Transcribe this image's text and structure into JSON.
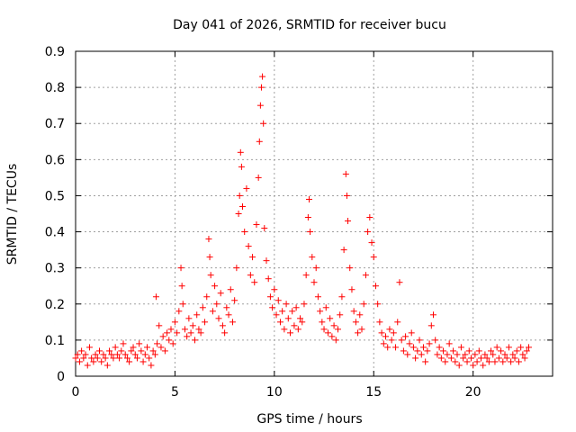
{
  "chart_data": {
    "type": "scatter",
    "title": "Day 041 of 2026, SRMTID for receiver bucu",
    "xlabel": "GPS time / hours",
    "ylabel": "SRMTID / TECUs",
    "xlim": [
      0,
      24
    ],
    "ylim": [
      0,
      0.9
    ],
    "xticks": [
      0,
      5,
      10,
      15,
      20
    ],
    "xtick_labels": [
      "0",
      "5",
      "10",
      "15",
      "20"
    ],
    "yticks": [
      0,
      0.1,
      0.2,
      0.3,
      0.4,
      0.5,
      0.6,
      0.7,
      0.8,
      0.9
    ],
    "ytick_labels": [
      "0",
      "0.1",
      "0.2",
      "0.3",
      "0.4",
      "0.5",
      "0.6",
      "0.7",
      "0.8",
      "0.9"
    ],
    "grid": true,
    "marker": "+",
    "color": "#ff0000",
    "series": [
      {
        "name": "SRMTID",
        "points": [
          [
            0.0,
            0.05
          ],
          [
            0.1,
            0.06
          ],
          [
            0.2,
            0.04
          ],
          [
            0.3,
            0.07
          ],
          [
            0.4,
            0.05
          ],
          [
            0.5,
            0.06
          ],
          [
            0.6,
            0.03
          ],
          [
            0.7,
            0.08
          ],
          [
            0.8,
            0.05
          ],
          [
            0.9,
            0.04
          ],
          [
            1.0,
            0.06
          ],
          [
            1.1,
            0.05
          ],
          [
            1.2,
            0.07
          ],
          [
            1.3,
            0.04
          ],
          [
            1.4,
            0.06
          ],
          [
            1.5,
            0.05
          ],
          [
            1.6,
            0.03
          ],
          [
            1.7,
            0.07
          ],
          [
            1.8,
            0.06
          ],
          [
            1.9,
            0.05
          ],
          [
            2.0,
            0.08
          ],
          [
            2.1,
            0.06
          ],
          [
            2.2,
            0.05
          ],
          [
            2.3,
            0.07
          ],
          [
            2.4,
            0.09
          ],
          [
            2.5,
            0.06
          ],
          [
            2.6,
            0.05
          ],
          [
            2.7,
            0.04
          ],
          [
            2.8,
            0.07
          ],
          [
            2.9,
            0.08
          ],
          [
            3.0,
            0.06
          ],
          [
            3.1,
            0.05
          ],
          [
            3.2,
            0.09
          ],
          [
            3.3,
            0.07
          ],
          [
            3.4,
            0.04
          ],
          [
            3.5,
            0.06
          ],
          [
            3.6,
            0.08
          ],
          [
            3.7,
            0.05
          ],
          [
            3.8,
            0.03
          ],
          [
            3.9,
            0.07
          ],
          [
            4.0,
            0.06
          ],
          [
            4.05,
            0.22
          ],
          [
            4.1,
            0.09
          ],
          [
            4.2,
            0.14
          ],
          [
            4.3,
            0.08
          ],
          [
            4.4,
            0.11
          ],
          [
            4.5,
            0.07
          ],
          [
            4.6,
            0.12
          ],
          [
            4.7,
            0.1
          ],
          [
            4.8,
            0.13
          ],
          [
            4.9,
            0.09
          ],
          [
            5.0,
            0.15
          ],
          [
            5.1,
            0.12
          ],
          [
            5.2,
            0.18
          ],
          [
            5.3,
            0.3
          ],
          [
            5.35,
            0.25
          ],
          [
            5.4,
            0.2
          ],
          [
            5.5,
            0.13
          ],
          [
            5.6,
            0.11
          ],
          [
            5.7,
            0.16
          ],
          [
            5.8,
            0.12
          ],
          [
            5.9,
            0.14
          ],
          [
            6.0,
            0.1
          ],
          [
            6.1,
            0.17
          ],
          [
            6.2,
            0.13
          ],
          [
            6.3,
            0.12
          ],
          [
            6.4,
            0.19
          ],
          [
            6.5,
            0.15
          ],
          [
            6.6,
            0.22
          ],
          [
            6.7,
            0.38
          ],
          [
            6.75,
            0.33
          ],
          [
            6.8,
            0.28
          ],
          [
            6.9,
            0.18
          ],
          [
            7.0,
            0.25
          ],
          [
            7.1,
            0.2
          ],
          [
            7.2,
            0.16
          ],
          [
            7.3,
            0.23
          ],
          [
            7.4,
            0.14
          ],
          [
            7.5,
            0.12
          ],
          [
            7.6,
            0.19
          ],
          [
            7.7,
            0.17
          ],
          [
            7.8,
            0.24
          ],
          [
            7.9,
            0.15
          ],
          [
            8.0,
            0.21
          ],
          [
            8.1,
            0.3
          ],
          [
            8.2,
            0.45
          ],
          [
            8.25,
            0.5
          ],
          [
            8.3,
            0.62
          ],
          [
            8.35,
            0.58
          ],
          [
            8.4,
            0.47
          ],
          [
            8.5,
            0.4
          ],
          [
            8.6,
            0.52
          ],
          [
            8.7,
            0.36
          ],
          [
            8.8,
            0.28
          ],
          [
            8.9,
            0.33
          ],
          [
            9.0,
            0.26
          ],
          [
            9.1,
            0.42
          ],
          [
            9.2,
            0.55
          ],
          [
            9.25,
            0.65
          ],
          [
            9.3,
            0.75
          ],
          [
            9.35,
            0.8
          ],
          [
            9.4,
            0.83
          ],
          [
            9.45,
            0.7
          ],
          [
            9.5,
            0.41
          ],
          [
            9.6,
            0.32
          ],
          [
            9.7,
            0.27
          ],
          [
            9.8,
            0.22
          ],
          [
            9.9,
            0.19
          ],
          [
            10.0,
            0.24
          ],
          [
            10.1,
            0.17
          ],
          [
            10.2,
            0.21
          ],
          [
            10.3,
            0.15
          ],
          [
            10.4,
            0.18
          ],
          [
            10.5,
            0.13
          ],
          [
            10.6,
            0.2
          ],
          [
            10.7,
            0.16
          ],
          [
            10.8,
            0.12
          ],
          [
            10.9,
            0.18
          ],
          [
            11.0,
            0.14
          ],
          [
            11.1,
            0.19
          ],
          [
            11.2,
            0.13
          ],
          [
            11.3,
            0.16
          ],
          [
            11.4,
            0.15
          ],
          [
            11.5,
            0.2
          ],
          [
            11.6,
            0.28
          ],
          [
            11.7,
            0.44
          ],
          [
            11.75,
            0.49
          ],
          [
            11.8,
            0.4
          ],
          [
            11.9,
            0.33
          ],
          [
            12.0,
            0.26
          ],
          [
            12.1,
            0.3
          ],
          [
            12.2,
            0.22
          ],
          [
            12.3,
            0.18
          ],
          [
            12.4,
            0.15
          ],
          [
            12.5,
            0.13
          ],
          [
            12.6,
            0.19
          ],
          [
            12.7,
            0.12
          ],
          [
            12.8,
            0.16
          ],
          [
            12.9,
            0.11
          ],
          [
            13.0,
            0.14
          ],
          [
            13.1,
            0.1
          ],
          [
            13.2,
            0.13
          ],
          [
            13.3,
            0.17
          ],
          [
            13.4,
            0.22
          ],
          [
            13.5,
            0.35
          ],
          [
            13.6,
            0.56
          ],
          [
            13.65,
            0.5
          ],
          [
            13.7,
            0.43
          ],
          [
            13.8,
            0.3
          ],
          [
            13.9,
            0.24
          ],
          [
            14.0,
            0.18
          ],
          [
            14.1,
            0.15
          ],
          [
            14.2,
            0.12
          ],
          [
            14.3,
            0.17
          ],
          [
            14.4,
            0.13
          ],
          [
            14.5,
            0.2
          ],
          [
            14.6,
            0.28
          ],
          [
            14.7,
            0.4
          ],
          [
            14.8,
            0.44
          ],
          [
            14.9,
            0.37
          ],
          [
            15.0,
            0.33
          ],
          [
            15.1,
            0.25
          ],
          [
            15.2,
            0.2
          ],
          [
            15.3,
            0.15
          ],
          [
            15.4,
            0.12
          ],
          [
            15.5,
            0.09
          ],
          [
            15.6,
            0.11
          ],
          [
            15.7,
            0.08
          ],
          [
            15.8,
            0.13
          ],
          [
            15.9,
            0.1
          ],
          [
            16.0,
            0.12
          ],
          [
            16.1,
            0.08
          ],
          [
            16.2,
            0.15
          ],
          [
            16.3,
            0.26
          ],
          [
            16.4,
            0.1
          ],
          [
            16.5,
            0.07
          ],
          [
            16.6,
            0.11
          ],
          [
            16.7,
            0.06
          ],
          [
            16.8,
            0.09
          ],
          [
            16.9,
            0.12
          ],
          [
            17.0,
            0.08
          ],
          [
            17.1,
            0.05
          ],
          [
            17.2,
            0.07
          ],
          [
            17.3,
            0.1
          ],
          [
            17.4,
            0.06
          ],
          [
            17.5,
            0.08
          ],
          [
            17.6,
            0.04
          ],
          [
            17.7,
            0.07
          ],
          [
            17.8,
            0.09
          ],
          [
            17.9,
            0.14
          ],
          [
            18.0,
            0.17
          ],
          [
            18.1,
            0.1
          ],
          [
            18.2,
            0.06
          ],
          [
            18.3,
            0.08
          ],
          [
            18.4,
            0.05
          ],
          [
            18.5,
            0.07
          ],
          [
            18.6,
            0.04
          ],
          [
            18.7,
            0.06
          ],
          [
            18.8,
            0.09
          ],
          [
            18.9,
            0.05
          ],
          [
            19.0,
            0.07
          ],
          [
            19.1,
            0.04
          ],
          [
            19.2,
            0.06
          ],
          [
            19.3,
            0.03
          ],
          [
            19.4,
            0.08
          ],
          [
            19.5,
            0.05
          ],
          [
            19.6,
            0.06
          ],
          [
            19.7,
            0.04
          ],
          [
            19.8,
            0.07
          ],
          [
            19.9,
            0.05
          ],
          [
            20.0,
            0.03
          ],
          [
            20.1,
            0.06
          ],
          [
            20.2,
            0.04
          ],
          [
            20.3,
            0.07
          ],
          [
            20.4,
            0.05
          ],
          [
            20.5,
            0.03
          ],
          [
            20.6,
            0.06
          ],
          [
            20.7,
            0.05
          ],
          [
            20.8,
            0.04
          ],
          [
            20.9,
            0.07
          ],
          [
            21.0,
            0.06
          ],
          [
            21.1,
            0.04
          ],
          [
            21.2,
            0.08
          ],
          [
            21.3,
            0.05
          ],
          [
            21.4,
            0.07
          ],
          [
            21.5,
            0.04
          ],
          [
            21.6,
            0.06
          ],
          [
            21.7,
            0.05
          ],
          [
            21.8,
            0.08
          ],
          [
            21.9,
            0.04
          ],
          [
            22.0,
            0.06
          ],
          [
            22.1,
            0.05
          ],
          [
            22.2,
            0.07
          ],
          [
            22.3,
            0.04
          ],
          [
            22.4,
            0.08
          ],
          [
            22.5,
            0.06
          ],
          [
            22.6,
            0.05
          ],
          [
            22.7,
            0.07
          ],
          [
            22.8,
            0.08
          ]
        ]
      }
    ]
  }
}
